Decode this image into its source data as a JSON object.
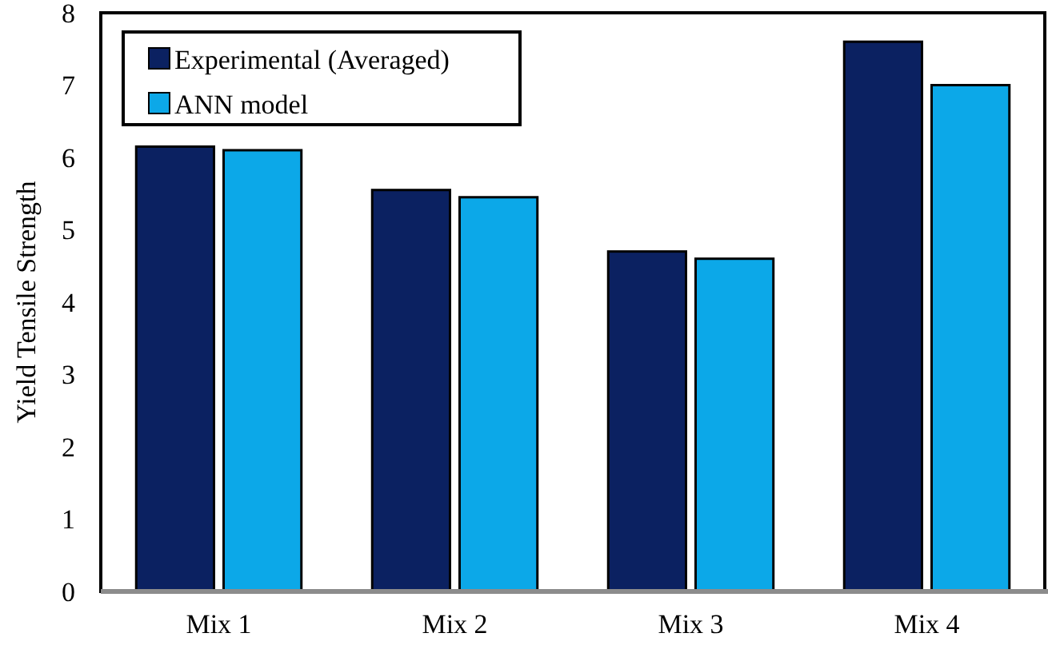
{
  "chart_data": {
    "type": "bar",
    "ylabel": "Yield Tensile Strength",
    "categories": [
      "Mix 1",
      "Mix 2",
      "Mix 3",
      "Mix 4"
    ],
    "series": [
      {
        "name": "Experimental (Averaged)",
        "color": "#0b2161",
        "values": [
          6.15,
          5.55,
          4.7,
          7.6
        ]
      },
      {
        "name": "ANN model",
        "color": "#0ca8e8",
        "values": [
          6.1,
          5.45,
          4.6,
          7.0
        ]
      }
    ],
    "ylim": [
      0,
      8
    ],
    "yticks": [
      0,
      1,
      2,
      3,
      4,
      5,
      6,
      7,
      8
    ],
    "grid": false,
    "legend": "top left"
  }
}
